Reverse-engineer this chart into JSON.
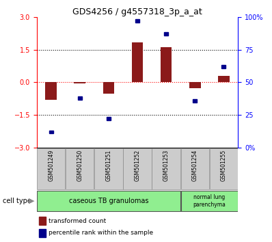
{
  "title": "GDS4256 / g4557318_3p_a_at",
  "samples": [
    "GSM501249",
    "GSM501250",
    "GSM501251",
    "GSM501252",
    "GSM501253",
    "GSM501254",
    "GSM501255"
  ],
  "red_bars": [
    -0.82,
    -0.05,
    -0.52,
    1.82,
    1.62,
    -0.27,
    0.28
  ],
  "blue_squares_pct": [
    12,
    38,
    22,
    97,
    87,
    36,
    62
  ],
  "ylim_left": [
    -3,
    3
  ],
  "ylim_right": [
    0,
    100
  ],
  "yticks_left": [
    -3,
    -1.5,
    0,
    1.5,
    3
  ],
  "yticks_right": [
    0,
    25,
    50,
    75,
    100
  ],
  "ytick_labels_right": [
    "0%",
    "25",
    "50",
    "75",
    "100%"
  ],
  "hlines_dotted": [
    1.5,
    -1.5
  ],
  "hline_red_dotted": 0,
  "bar_color": "#8B1A1A",
  "square_color": "#00008B",
  "cell_type_groups": [
    {
      "label": "caseous TB granulomas",
      "indices": [
        0,
        1,
        2,
        3,
        4
      ],
      "color": "#90EE90"
    },
    {
      "label": "normal lung\nparenchyma",
      "indices": [
        5,
        6
      ],
      "color": "#90EE90"
    }
  ],
  "cell_type_label": "cell type",
  "legend_red": "transformed count",
  "legend_blue": "percentile rank within the sample",
  "bar_width": 0.4,
  "sq_size": 0.15
}
